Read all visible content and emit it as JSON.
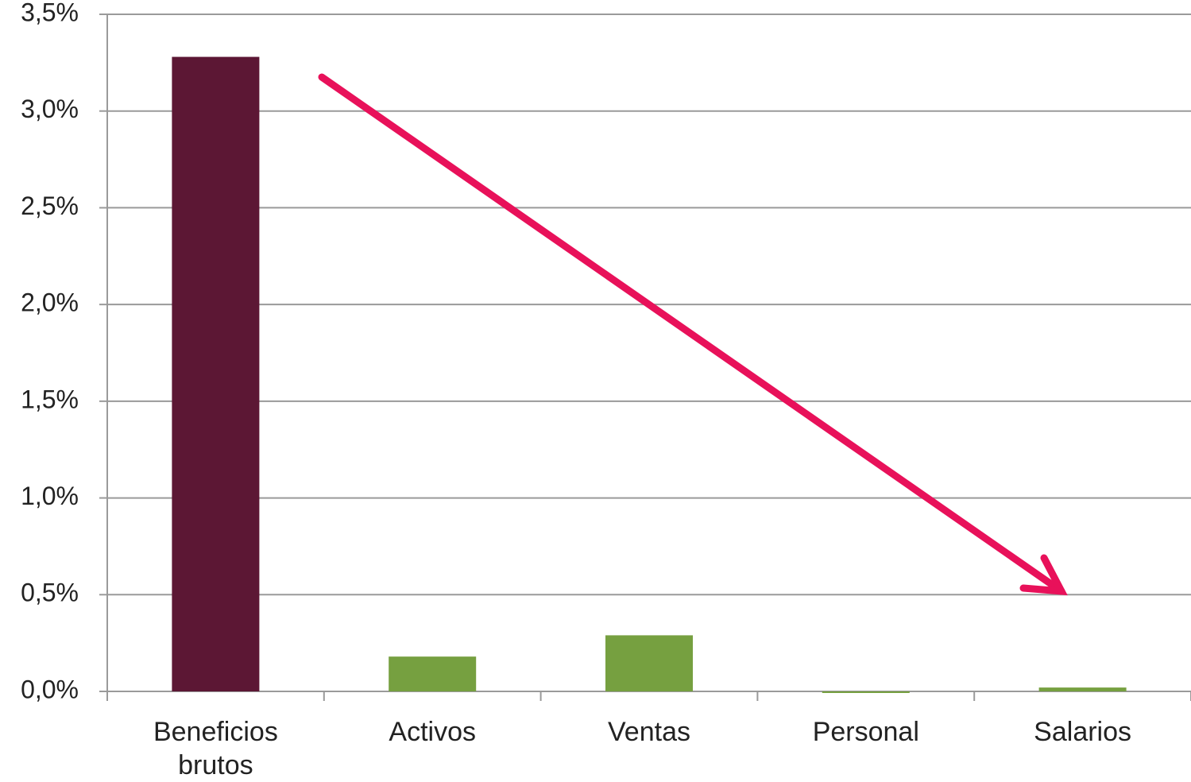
{
  "chart_data": {
    "type": "bar",
    "categories": [
      "Beneficios brutos",
      "Activos",
      "Ventas",
      "Personal",
      "Salarios"
    ],
    "values": [
      3.28,
      0.18,
      0.29,
      0,
      0.02
    ],
    "colors": [
      "#5c1734",
      "#76a040",
      "#76a040",
      "#76a040",
      "#76a040"
    ],
    "ylim": [
      0,
      3.5
    ],
    "yticks": [
      {
        "value": 0,
        "label": "0,0%"
      },
      {
        "value": 0.5,
        "label": "0,5%"
      },
      {
        "value": 1,
        "label": "1,0%"
      },
      {
        "value": 1.5,
        "label": "1,5%"
      },
      {
        "value": 2,
        "label": "2,0%"
      },
      {
        "value": 2.5,
        "label": "2,5%"
      },
      {
        "value": 3,
        "label": "3,0%"
      },
      {
        "value": 3.5,
        "label": "3,5%"
      }
    ],
    "grid": true
  }
}
